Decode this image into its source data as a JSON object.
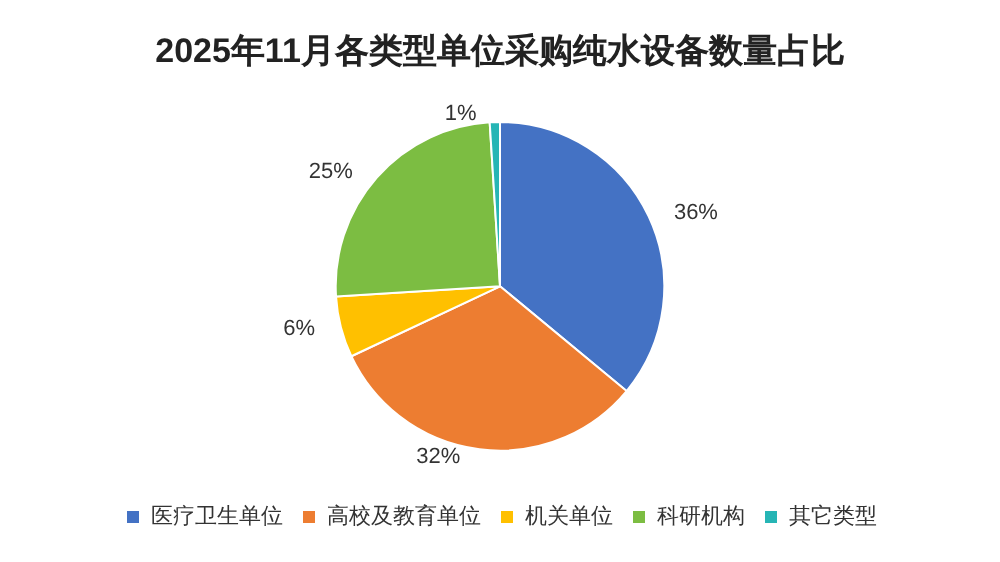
{
  "chart_data": {
    "type": "pie",
    "title": "2025年11月各类型单位采购纯水设备数量占比",
    "categories": [
      "医疗卫生单位",
      "高校及教育单位",
      "机关单位",
      "科研机构",
      "其它类型"
    ],
    "values": [
      36,
      32,
      6,
      25,
      1
    ],
    "value_labels": [
      "36%",
      "32%",
      "6%",
      "25%",
      "1%"
    ],
    "colors": [
      "#4472c4",
      "#ed7d31",
      "#ffc000",
      "#7cbd42",
      "#26b5b5"
    ],
    "legend": "bottom"
  }
}
